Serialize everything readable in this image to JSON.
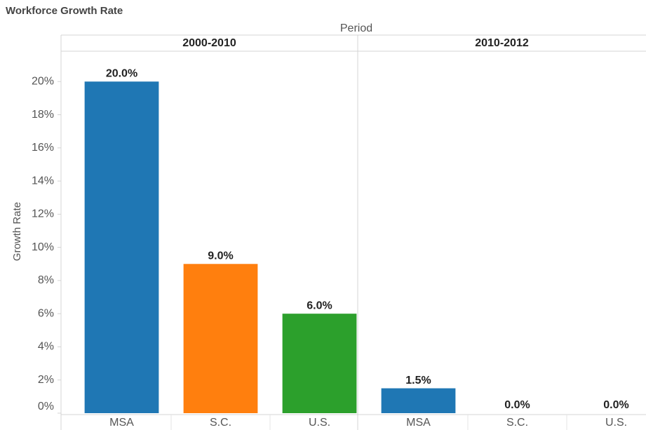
{
  "chart_data": {
    "type": "bar",
    "title": "Workforce Growth Rate",
    "x_header": "Period",
    "y_label": "Growth Rate",
    "colors": [
      "#1f77b4",
      "#ff7f0e",
      "#2ca02c"
    ],
    "panels": [
      {
        "name": "2000-2010",
        "categories": [
          "MSA",
          "S.C.",
          "U.S."
        ],
        "values": [
          20,
          9,
          6
        ],
        "value_labels": [
          "20.0%",
          "9.0%",
          "6.0%"
        ]
      },
      {
        "name": "2010-2012",
        "categories": [
          "MSA",
          "S.C.",
          "U.S."
        ],
        "values": [
          1.5,
          0,
          0
        ],
        "value_labels": [
          "1.5%",
          "0.0%",
          "0.0%"
        ]
      }
    ],
    "ylim": [
      0,
      22
    ],
    "yticks": [
      {
        "value": 0,
        "label": "0%"
      },
      {
        "value": 2,
        "label": "2%"
      },
      {
        "value": 4,
        "label": "4%"
      },
      {
        "value": 6,
        "label": "6%"
      },
      {
        "value": 8,
        "label": "8%"
      },
      {
        "value": 10,
        "label": "10%"
      },
      {
        "value": 12,
        "label": "12%"
      },
      {
        "value": 14,
        "label": "14%"
      },
      {
        "value": 16,
        "label": "16%"
      },
      {
        "value": 18,
        "label": "18%"
      },
      {
        "value": 20,
        "label": "20%"
      }
    ]
  }
}
